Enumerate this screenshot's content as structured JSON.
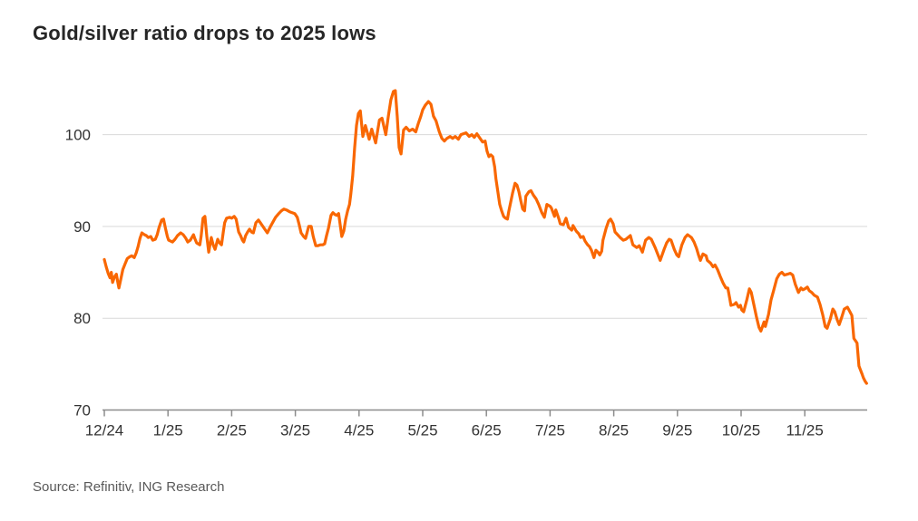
{
  "chart": {
    "title": "Gold/silver ratio drops to 2025 lows",
    "source": "Source: Refinitiv, ING Research"
  },
  "colors": {
    "line": "#F96702",
    "grid": "#D9D9D9",
    "axis": "#8C8C8C",
    "tick_label": "#333333",
    "title": "#262626",
    "source": "#595959",
    "background": "#FFFFFF"
  },
  "chart_data": {
    "type": "line",
    "title": "Gold/silver ratio drops to 2025 lows",
    "source": "Source: Refinitiv, ING Research",
    "series_name": "Gold/silver ratio",
    "x_unit": "months after 12/24 tick (0 = 12/24, 11 = 11/25)",
    "x_tick_labels": [
      "12/24",
      "1/25",
      "2/25",
      "3/25",
      "4/25",
      "5/25",
      "6/25",
      "7/25",
      "8/25",
      "9/25",
      "10/25",
      "11/25"
    ],
    "y_ticks": [
      70,
      80,
      90,
      100
    ],
    "ylim": [
      70,
      106
    ],
    "grid": "horizontal-only",
    "legend": "none",
    "points": [
      [
        0,
        86.4
      ],
      [
        0.03,
        85.6
      ],
      [
        0.06,
        84.9
      ],
      [
        0.09,
        84.4
      ],
      [
        0.11,
        85
      ],
      [
        0.13,
        83.9
      ],
      [
        0.16,
        84.5
      ],
      [
        0.19,
        84.8
      ],
      [
        0.21,
        84
      ],
      [
        0.23,
        83.3
      ],
      [
        0.26,
        84.3
      ],
      [
        0.29,
        85.3
      ],
      [
        0.33,
        86
      ],
      [
        0.36,
        86.5
      ],
      [
        0.4,
        86.7
      ],
      [
        0.43,
        86.8
      ],
      [
        0.47,
        86.6
      ],
      [
        0.5,
        87.1
      ],
      [
        0.53,
        87.8
      ],
      [
        0.56,
        88.7
      ],
      [
        0.59,
        89.3
      ],
      [
        0.63,
        89.1
      ],
      [
        0.66,
        89
      ],
      [
        0.69,
        88.8
      ],
      [
        0.73,
        88.9
      ],
      [
        0.76,
        88.5
      ],
      [
        0.8,
        88.6
      ],
      [
        0.83,
        89.1
      ],
      [
        0.86,
        89.9
      ],
      [
        0.9,
        90.7
      ],
      [
        0.93,
        90.8
      ],
      [
        0.96,
        89.8
      ],
      [
        0.99,
        88.9
      ],
      [
        1.01,
        88.5
      ],
      [
        1.07,
        88.3
      ],
      [
        1.11,
        88.6
      ],
      [
        1.15,
        89
      ],
      [
        1.2,
        89.3
      ],
      [
        1.24,
        89.1
      ],
      [
        1.28,
        88.7
      ],
      [
        1.31,
        88.3
      ],
      [
        1.35,
        88.5
      ],
      [
        1.4,
        89.1
      ],
      [
        1.42,
        88.7
      ],
      [
        1.45,
        88.2
      ],
      [
        1.5,
        88
      ],
      [
        1.52,
        88.9
      ],
      [
        1.55,
        90.9
      ],
      [
        1.58,
        91.1
      ],
      [
        1.61,
        88.9
      ],
      [
        1.64,
        87.2
      ],
      [
        1.68,
        88.8
      ],
      [
        1.71,
        88
      ],
      [
        1.74,
        87.5
      ],
      [
        1.78,
        88.6
      ],
      [
        1.81,
        88.2
      ],
      [
        1.84,
        88
      ],
      [
        1.87,
        89.5
      ],
      [
        1.89,
        90.4
      ],
      [
        1.92,
        90.9
      ],
      [
        1.97,
        91
      ],
      [
        2,
        90.9
      ],
      [
        2.04,
        91.1
      ],
      [
        2.07,
        90.8
      ],
      [
        2.11,
        89.4
      ],
      [
        2.14,
        89
      ],
      [
        2.17,
        88.5
      ],
      [
        2.19,
        88.3
      ],
      [
        2.22,
        89
      ],
      [
        2.25,
        89.4
      ],
      [
        2.28,
        89.7
      ],
      [
        2.31,
        89.4
      ],
      [
        2.34,
        89.3
      ],
      [
        2.38,
        90.4
      ],
      [
        2.42,
        90.7
      ],
      [
        2.45,
        90.4
      ],
      [
        2.49,
        90
      ],
      [
        2.54,
        89.5
      ],
      [
        2.56,
        89.3
      ],
      [
        2.61,
        90
      ],
      [
        2.65,
        90.5
      ],
      [
        2.69,
        91
      ],
      [
        2.74,
        91.4
      ],
      [
        2.78,
        91.7
      ],
      [
        2.82,
        91.9
      ],
      [
        2.86,
        91.8
      ],
      [
        2.91,
        91.6
      ],
      [
        2.95,
        91.5
      ],
      [
        2.99,
        91.4
      ],
      [
        3.03,
        91
      ],
      [
        3.06,
        90.2
      ],
      [
        3.09,
        89.3
      ],
      [
        3.13,
        88.9
      ],
      [
        3.16,
        88.7
      ],
      [
        3.21,
        90
      ],
      [
        3.25,
        90
      ],
      [
        3.28,
        88.9
      ],
      [
        3.32,
        87.9
      ],
      [
        3.35,
        87.9
      ],
      [
        3.39,
        88
      ],
      [
        3.43,
        88
      ],
      [
        3.46,
        88.1
      ],
      [
        3.49,
        89
      ],
      [
        3.52,
        89.8
      ],
      [
        3.56,
        91.2
      ],
      [
        3.59,
        91.5
      ],
      [
        3.62,
        91.3
      ],
      [
        3.65,
        91.2
      ],
      [
        3.68,
        91.4
      ],
      [
        3.7,
        90.4
      ],
      [
        3.73,
        88.9
      ],
      [
        3.76,
        89.5
      ],
      [
        3.79,
        90.8
      ],
      [
        3.82,
        91.7
      ],
      [
        3.85,
        92.4
      ],
      [
        3.87,
        93.5
      ],
      [
        3.9,
        95.5
      ],
      [
        3.93,
        98.5
      ],
      [
        3.96,
        101
      ],
      [
        3.99,
        102.3
      ],
      [
        4.02,
        102.6
      ],
      [
        4.06,
        99.8
      ],
      [
        4.1,
        101
      ],
      [
        4.16,
        99.5
      ],
      [
        4.2,
        100.6
      ],
      [
        4.26,
        99.1
      ],
      [
        4.32,
        101.6
      ],
      [
        4.36,
        101.8
      ],
      [
        4.42,
        100
      ],
      [
        4.46,
        102
      ],
      [
        4.5,
        103.8
      ],
      [
        4.54,
        104.7
      ],
      [
        4.57,
        104.8
      ],
      [
        4.6,
        102
      ],
      [
        4.63,
        98.6
      ],
      [
        4.66,
        97.9
      ],
      [
        4.7,
        100.5
      ],
      [
        4.74,
        100.8
      ],
      [
        4.79,
        100.4
      ],
      [
        4.84,
        100.6
      ],
      [
        4.89,
        100.3
      ],
      [
        4.93,
        101.2
      ],
      [
        4.97,
        102
      ],
      [
        5,
        102.7
      ],
      [
        5.04,
        103.2
      ],
      [
        5.09,
        103.6
      ],
      [
        5.13,
        103.3
      ],
      [
        5.17,
        102
      ],
      [
        5.21,
        101.5
      ],
      [
        5.26,
        100.3
      ],
      [
        5.3,
        99.6
      ],
      [
        5.34,
        99.3
      ],
      [
        5.38,
        99.6
      ],
      [
        5.43,
        99.8
      ],
      [
        5.47,
        99.6
      ],
      [
        5.51,
        99.8
      ],
      [
        5.56,
        99.5
      ],
      [
        5.6,
        100
      ],
      [
        5.64,
        100.1
      ],
      [
        5.68,
        100.2
      ],
      [
        5.73,
        99.8
      ],
      [
        5.77,
        100
      ],
      [
        5.81,
        99.7
      ],
      [
        5.85,
        100.1
      ],
      [
        5.9,
        99.6
      ],
      [
        5.94,
        99.2
      ],
      [
        5.98,
        99.3
      ],
      [
        6.01,
        98.2
      ],
      [
        6.04,
        97.6
      ],
      [
        6.07,
        97.8
      ],
      [
        6.1,
        97.6
      ],
      [
        6.13,
        96.5
      ],
      [
        6.15,
        95.2
      ],
      [
        6.18,
        93.8
      ],
      [
        6.21,
        92.4
      ],
      [
        6.24,
        91.7
      ],
      [
        6.27,
        91.1
      ],
      [
        6.3,
        90.9
      ],
      [
        6.33,
        90.8
      ],
      [
        6.35,
        91.6
      ],
      [
        6.38,
        92.6
      ],
      [
        6.41,
        93.6
      ],
      [
        6.45,
        94.7
      ],
      [
        6.48,
        94.5
      ],
      [
        6.51,
        93.8
      ],
      [
        6.54,
        92.8
      ],
      [
        6.57,
        91.9
      ],
      [
        6.6,
        91.7
      ],
      [
        6.62,
        93.3
      ],
      [
        6.67,
        93.8
      ],
      [
        6.7,
        93.9
      ],
      [
        6.74,
        93.4
      ],
      [
        6.78,
        93
      ],
      [
        6.82,
        92.4
      ],
      [
        6.87,
        91.5
      ],
      [
        6.91,
        91
      ],
      [
        6.95,
        92.4
      ],
      [
        7,
        92.2
      ],
      [
        7.02,
        92
      ],
      [
        7.07,
        91.1
      ],
      [
        7.09,
        91.8
      ],
      [
        7.14,
        90.8
      ],
      [
        7.16,
        90.3
      ],
      [
        7.21,
        90.2
      ],
      [
        7.25,
        90.9
      ],
      [
        7.29,
        89.9
      ],
      [
        7.34,
        89.6
      ],
      [
        7.36,
        90.1
      ],
      [
        7.41,
        89.5
      ],
      [
        7.45,
        89.2
      ],
      [
        7.48,
        88.8
      ],
      [
        7.52,
        88.9
      ],
      [
        7.55,
        88.4
      ],
      [
        7.59,
        88
      ],
      [
        7.62,
        87.8
      ],
      [
        7.65,
        87.4
      ],
      [
        7.69,
        86.6
      ],
      [
        7.72,
        87.4
      ],
      [
        7.75,
        87.2
      ],
      [
        7.78,
        86.9
      ],
      [
        7.81,
        87.3
      ],
      [
        7.83,
        88.5
      ],
      [
        7.88,
        89.8
      ],
      [
        7.92,
        90.6
      ],
      [
        7.95,
        90.8
      ],
      [
        7.99,
        90.3
      ],
      [
        8.02,
        89.4
      ],
      [
        8.06,
        89.1
      ],
      [
        8.1,
        88.8
      ],
      [
        8.15,
        88.5
      ],
      [
        8.19,
        88.6
      ],
      [
        8.26,
        89
      ],
      [
        8.3,
        88
      ],
      [
        8.36,
        87.7
      ],
      [
        8.4,
        87.9
      ],
      [
        8.45,
        87.2
      ],
      [
        8.5,
        88.5
      ],
      [
        8.55,
        88.8
      ],
      [
        8.59,
        88.6
      ],
      [
        8.65,
        87.7
      ],
      [
        8.69,
        87
      ],
      [
        8.73,
        86.3
      ],
      [
        8.79,
        87.5
      ],
      [
        8.83,
        88.2
      ],
      [
        8.87,
        88.6
      ],
      [
        8.9,
        88.5
      ],
      [
        8.95,
        87.5
      ],
      [
        8.99,
        86.9
      ],
      [
        9.02,
        86.7
      ],
      [
        9.07,
        88
      ],
      [
        9.12,
        88.8
      ],
      [
        9.16,
        89.1
      ],
      [
        9.22,
        88.8
      ],
      [
        9.26,
        88.3
      ],
      [
        9.3,
        87.6
      ],
      [
        9.33,
        86.9
      ],
      [
        9.36,
        86.3
      ],
      [
        9.4,
        87
      ],
      [
        9.45,
        86.8
      ],
      [
        9.47,
        86.3
      ],
      [
        9.52,
        86
      ],
      [
        9.56,
        85.6
      ],
      [
        9.59,
        85.8
      ],
      [
        9.63,
        85.3
      ],
      [
        9.67,
        84.6
      ],
      [
        9.72,
        83.8
      ],
      [
        9.76,
        83.3
      ],
      [
        9.79,
        83.3
      ],
      [
        9.82,
        82.2
      ],
      [
        9.84,
        81.4
      ],
      [
        9.89,
        81.5
      ],
      [
        9.92,
        81.7
      ],
      [
        9.96,
        81.2
      ],
      [
        9.99,
        81.4
      ],
      [
        10.01,
        80.9
      ],
      [
        10.04,
        80.7
      ],
      [
        10.09,
        82
      ],
      [
        10.13,
        83.2
      ],
      [
        10.16,
        82.8
      ],
      [
        10.2,
        81.5
      ],
      [
        10.24,
        80.2
      ],
      [
        10.28,
        79
      ],
      [
        10.31,
        78.6
      ],
      [
        10.36,
        79.6
      ],
      [
        10.38,
        79.1
      ],
      [
        10.43,
        80.4
      ],
      [
        10.47,
        82
      ],
      [
        10.51,
        83
      ],
      [
        10.56,
        84.3
      ],
      [
        10.6,
        84.8
      ],
      [
        10.64,
        85
      ],
      [
        10.68,
        84.7
      ],
      [
        10.73,
        84.8
      ],
      [
        10.77,
        84.9
      ],
      [
        10.81,
        84.7
      ],
      [
        10.85,
        83.7
      ],
      [
        10.9,
        82.8
      ],
      [
        10.94,
        83.3
      ],
      [
        10.97,
        83.1
      ],
      [
        11,
        83.2
      ],
      [
        11.04,
        83.4
      ],
      [
        11.07,
        83
      ],
      [
        11.11,
        82.8
      ],
      [
        11.15,
        82.5
      ],
      [
        11.2,
        82.3
      ],
      [
        11.24,
        81.5
      ],
      [
        11.28,
        80.4
      ],
      [
        11.32,
        79.1
      ],
      [
        11.35,
        78.9
      ],
      [
        11.4,
        79.9
      ],
      [
        11.44,
        81
      ],
      [
        11.47,
        80.7
      ],
      [
        11.51,
        79.8
      ],
      [
        11.54,
        79.3
      ],
      [
        11.58,
        80.1
      ],
      [
        11.62,
        81
      ],
      [
        11.67,
        81.2
      ],
      [
        11.71,
        80.7
      ],
      [
        11.74,
        80.3
      ],
      [
        11.77,
        77.8
      ],
      [
        11.8,
        77.5
      ],
      [
        11.82,
        77.3
      ],
      [
        11.85,
        74.8
      ],
      [
        11.9,
        73.9
      ],
      [
        11.92,
        73.5
      ],
      [
        11.95,
        73.1
      ],
      [
        11.97,
        72.9
      ]
    ]
  }
}
